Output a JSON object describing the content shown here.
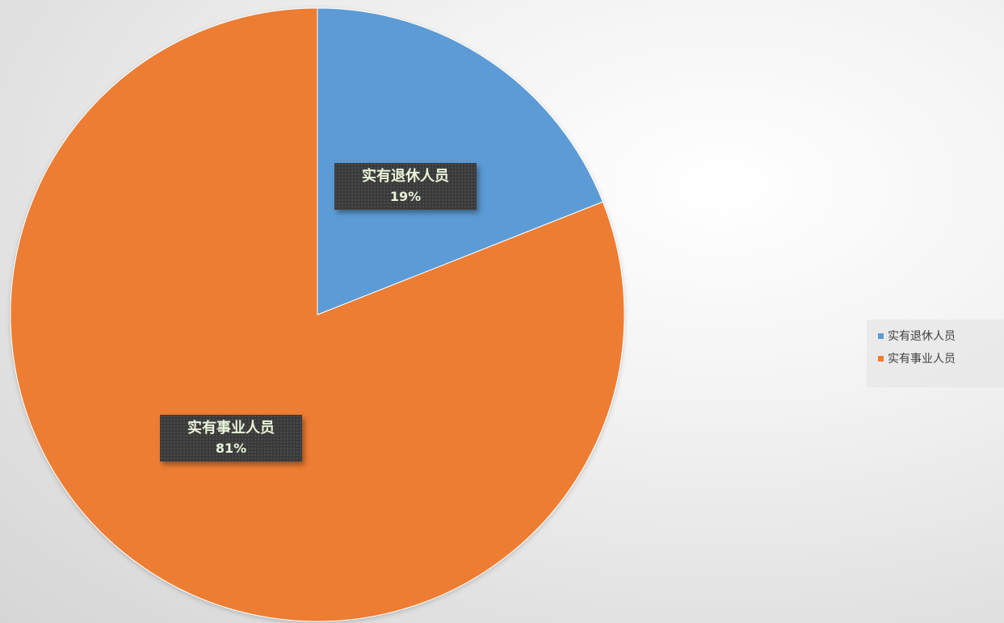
{
  "chart_data": {
    "type": "pie",
    "categories": [
      "实有退休人员",
      "实有事业人员"
    ],
    "values": [
      19,
      81
    ],
    "unit": "%",
    "colors": [
      "#5B9BD5",
      "#ED7D31"
    ],
    "data_labels": [
      {
        "category": "实有退休人员",
        "text": "19%"
      },
      {
        "category": "实有事业人员",
        "text": "81%"
      }
    ],
    "start_angle": "12 o'clock",
    "direction": "clockwise",
    "legend": {
      "position": "right",
      "items": [
        "实有退休人员",
        "实有事业人员"
      ]
    }
  }
}
